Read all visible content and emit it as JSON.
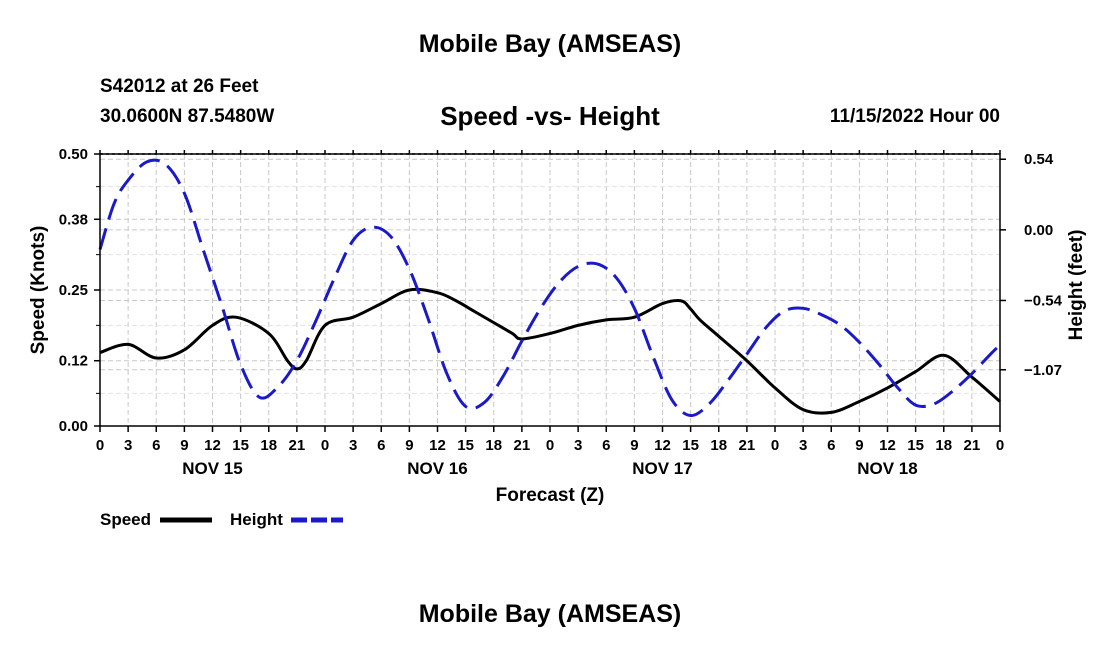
{
  "header": {
    "title": "Mobile Bay (AMSEAS)",
    "station": "S42012 at 26 Feet",
    "coordinates": "30.0600N  87.5480W",
    "subtitle": "Speed -vs- Height",
    "datetime": "11/15/2022 Hour 00"
  },
  "footer": {
    "title": "Mobile Bay (AMSEAS)"
  },
  "colors": {
    "speed": "#000000",
    "height": "#1a1ac8",
    "grid": "#c8c8c8"
  },
  "chart_data": {
    "type": "line",
    "title": "Speed -vs- Height",
    "xlabel": "Forecast (Z)",
    "ylabel": "Speed (Knots)",
    "y2label": "Height (feet)",
    "xlim": [
      0,
      96
    ],
    "ylim": [
      0,
      0.5
    ],
    "y2lim": [
      -1.5,
      0.58
    ],
    "x_tick_hours": [
      0,
      3,
      6,
      9,
      12,
      15,
      18,
      21,
      24,
      27,
      30,
      33,
      36,
      39,
      42,
      45,
      48,
      51,
      54,
      57,
      60,
      63,
      66,
      69,
      72,
      75,
      78,
      81,
      84,
      87,
      90,
      93,
      96
    ],
    "x_tick_labels": [
      "0",
      "3",
      "6",
      "9",
      "12",
      "15",
      "18",
      "21",
      "0",
      "3",
      "6",
      "9",
      "12",
      "15",
      "18",
      "21",
      "0",
      "3",
      "6",
      "9",
      "12",
      "15",
      "18",
      "21",
      "0",
      "3",
      "6",
      "9",
      "12",
      "15",
      "18",
      "21",
      "0"
    ],
    "day_labels": [
      {
        "hour": 12,
        "label": "NOV 15"
      },
      {
        "hour": 36,
        "label": "NOV 16"
      },
      {
        "hour": 60,
        "label": "NOV 17"
      },
      {
        "hour": 84,
        "label": "NOV 18"
      }
    ],
    "y_ticks": [
      0.0,
      0.12,
      0.25,
      0.38,
      0.5
    ],
    "y_tick_labels": [
      "0.00",
      "0.12",
      "0.25",
      "0.38",
      "0.50"
    ],
    "y2_ticks": [
      0.54,
      0.0,
      -0.54,
      -1.07
    ],
    "y2_tick_labels": [
      "0.54",
      "0.00",
      "−0.54",
      "−1.07"
    ],
    "series": [
      {
        "name": "Speed",
        "axis": "left",
        "style": "solid",
        "x": [
          0,
          3,
          6,
          9,
          12,
          14.5,
          18,
          20,
          21,
          22,
          24,
          27,
          30,
          33,
          36,
          38,
          40,
          42,
          44,
          45,
          48,
          51,
          54,
          57,
          60,
          62,
          63,
          64,
          66,
          69,
          72,
          75,
          78,
          81,
          84,
          87,
          90,
          93,
          96
        ],
        "values": [
          0.135,
          0.15,
          0.125,
          0.14,
          0.185,
          0.2,
          0.17,
          0.12,
          0.105,
          0.12,
          0.185,
          0.2,
          0.225,
          0.25,
          0.245,
          0.23,
          0.21,
          0.19,
          0.17,
          0.16,
          0.17,
          0.185,
          0.195,
          0.2,
          0.225,
          0.23,
          0.215,
          0.195,
          0.165,
          0.12,
          0.07,
          0.03,
          0.025,
          0.045,
          0.07,
          0.1,
          0.13,
          0.09,
          0.045
        ]
      },
      {
        "name": "Height",
        "axis": "right",
        "style": "dashed",
        "x": [
          0,
          1.5,
          3,
          5,
          7,
          9,
          11,
          13,
          15,
          17,
          19,
          21,
          23,
          25,
          27,
          29,
          31,
          33,
          35,
          37,
          39,
          41,
          43,
          45,
          47,
          49,
          51,
          53,
          55,
          57,
          59,
          61,
          63,
          65,
          67,
          69,
          71,
          73,
          75,
          77,
          79,
          81,
          83,
          85,
          87,
          89,
          91,
          93,
          95,
          96
        ],
        "values": [
          -0.15,
          0.2,
          0.38,
          0.52,
          0.5,
          0.28,
          -0.15,
          -0.58,
          -1.03,
          -1.28,
          -1.2,
          -1.0,
          -0.7,
          -0.37,
          -0.08,
          0.02,
          -0.05,
          -0.3,
          -0.68,
          -1.1,
          -1.35,
          -1.32,
          -1.12,
          -0.85,
          -0.6,
          -0.4,
          -0.28,
          -0.26,
          -0.36,
          -0.6,
          -0.97,
          -1.3,
          -1.42,
          -1.33,
          -1.15,
          -0.95,
          -0.75,
          -0.62,
          -0.6,
          -0.65,
          -0.73,
          -0.86,
          -1.02,
          -1.2,
          -1.34,
          -1.33,
          -1.23,
          -1.1,
          -0.95,
          -0.88
        ]
      }
    ],
    "legend": [
      {
        "label": "Speed",
        "style": "solid"
      },
      {
        "label": "Height",
        "style": "dashed"
      }
    ]
  }
}
